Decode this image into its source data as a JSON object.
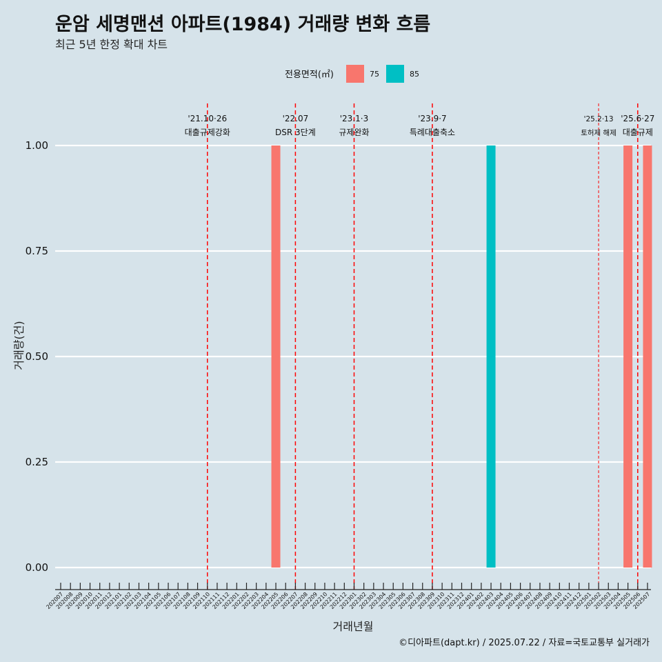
{
  "chart_data": {
    "type": "bar",
    "title": "운암 세명맨션 아파트(1984) 거래량 변화 흐름",
    "subtitle": "최근 5년 한정 확대 차트",
    "xlabel": "거래년월",
    "ylabel": "거래량(건)",
    "ylim": [
      0,
      1
    ],
    "yticks": [
      "0.00",
      "0.25",
      "0.50",
      "0.75",
      "1.00"
    ],
    "categories": [
      "202007",
      "202008",
      "202009",
      "202010",
      "202011",
      "202012",
      "202101",
      "202102",
      "202103",
      "202104",
      "202105",
      "202106",
      "202107",
      "202108",
      "202109",
      "202110",
      "202111",
      "202112",
      "202201",
      "202202",
      "202203",
      "202204",
      "202205",
      "202206",
      "202207",
      "202208",
      "202209",
      "202210",
      "202211",
      "202212",
      "202301",
      "202302",
      "202303",
      "202304",
      "202305",
      "202306",
      "202307",
      "202308",
      "202309",
      "202310",
      "202311",
      "202312",
      "202401",
      "202402",
      "202403",
      "202404",
      "202405",
      "202406",
      "202407",
      "202408",
      "202409",
      "202410",
      "202411",
      "202412",
      "202501",
      "202502",
      "202503",
      "202504",
      "202505",
      "202506",
      "202507"
    ],
    "legend": {
      "title": "전용면적(㎡)",
      "position": "top",
      "entries": [
        {
          "name": "75",
          "color": "#f8766d"
        },
        {
          "name": "85",
          "color": "#00bfc4"
        }
      ]
    },
    "bars": [
      {
        "month": "202205",
        "area": "75",
        "value": 1
      },
      {
        "month": "202403",
        "area": "85",
        "value": 1
      },
      {
        "month": "202505",
        "area": "75",
        "value": 1
      },
      {
        "month": "202507",
        "area": "75",
        "value": 1
      }
    ],
    "annotations": [
      {
        "month": "202110",
        "date": "'21.10·26",
        "label": "대출규제강화",
        "dash": "long"
      },
      {
        "month": "202207",
        "date": "'22.07",
        "label": "DSR 3단계",
        "dash": "long"
      },
      {
        "month": "202301",
        "date": "'23.1·3",
        "label": "규제완화",
        "dash": "long"
      },
      {
        "month": "202309",
        "date": "'23.9·7",
        "label": "특례대출축소",
        "dash": "long"
      },
      {
        "month": "202502",
        "date": "'25.2·13",
        "label": "토허제 해제",
        "dash": "short"
      },
      {
        "month": "202506",
        "date": "'25.6·27",
        "label": "대출규제",
        "dash": "long"
      }
    ],
    "grid": true
  },
  "caption": "©디아파트(dapt.kr) / 2025.07.22 / 자료=국토교통부 실거래가"
}
